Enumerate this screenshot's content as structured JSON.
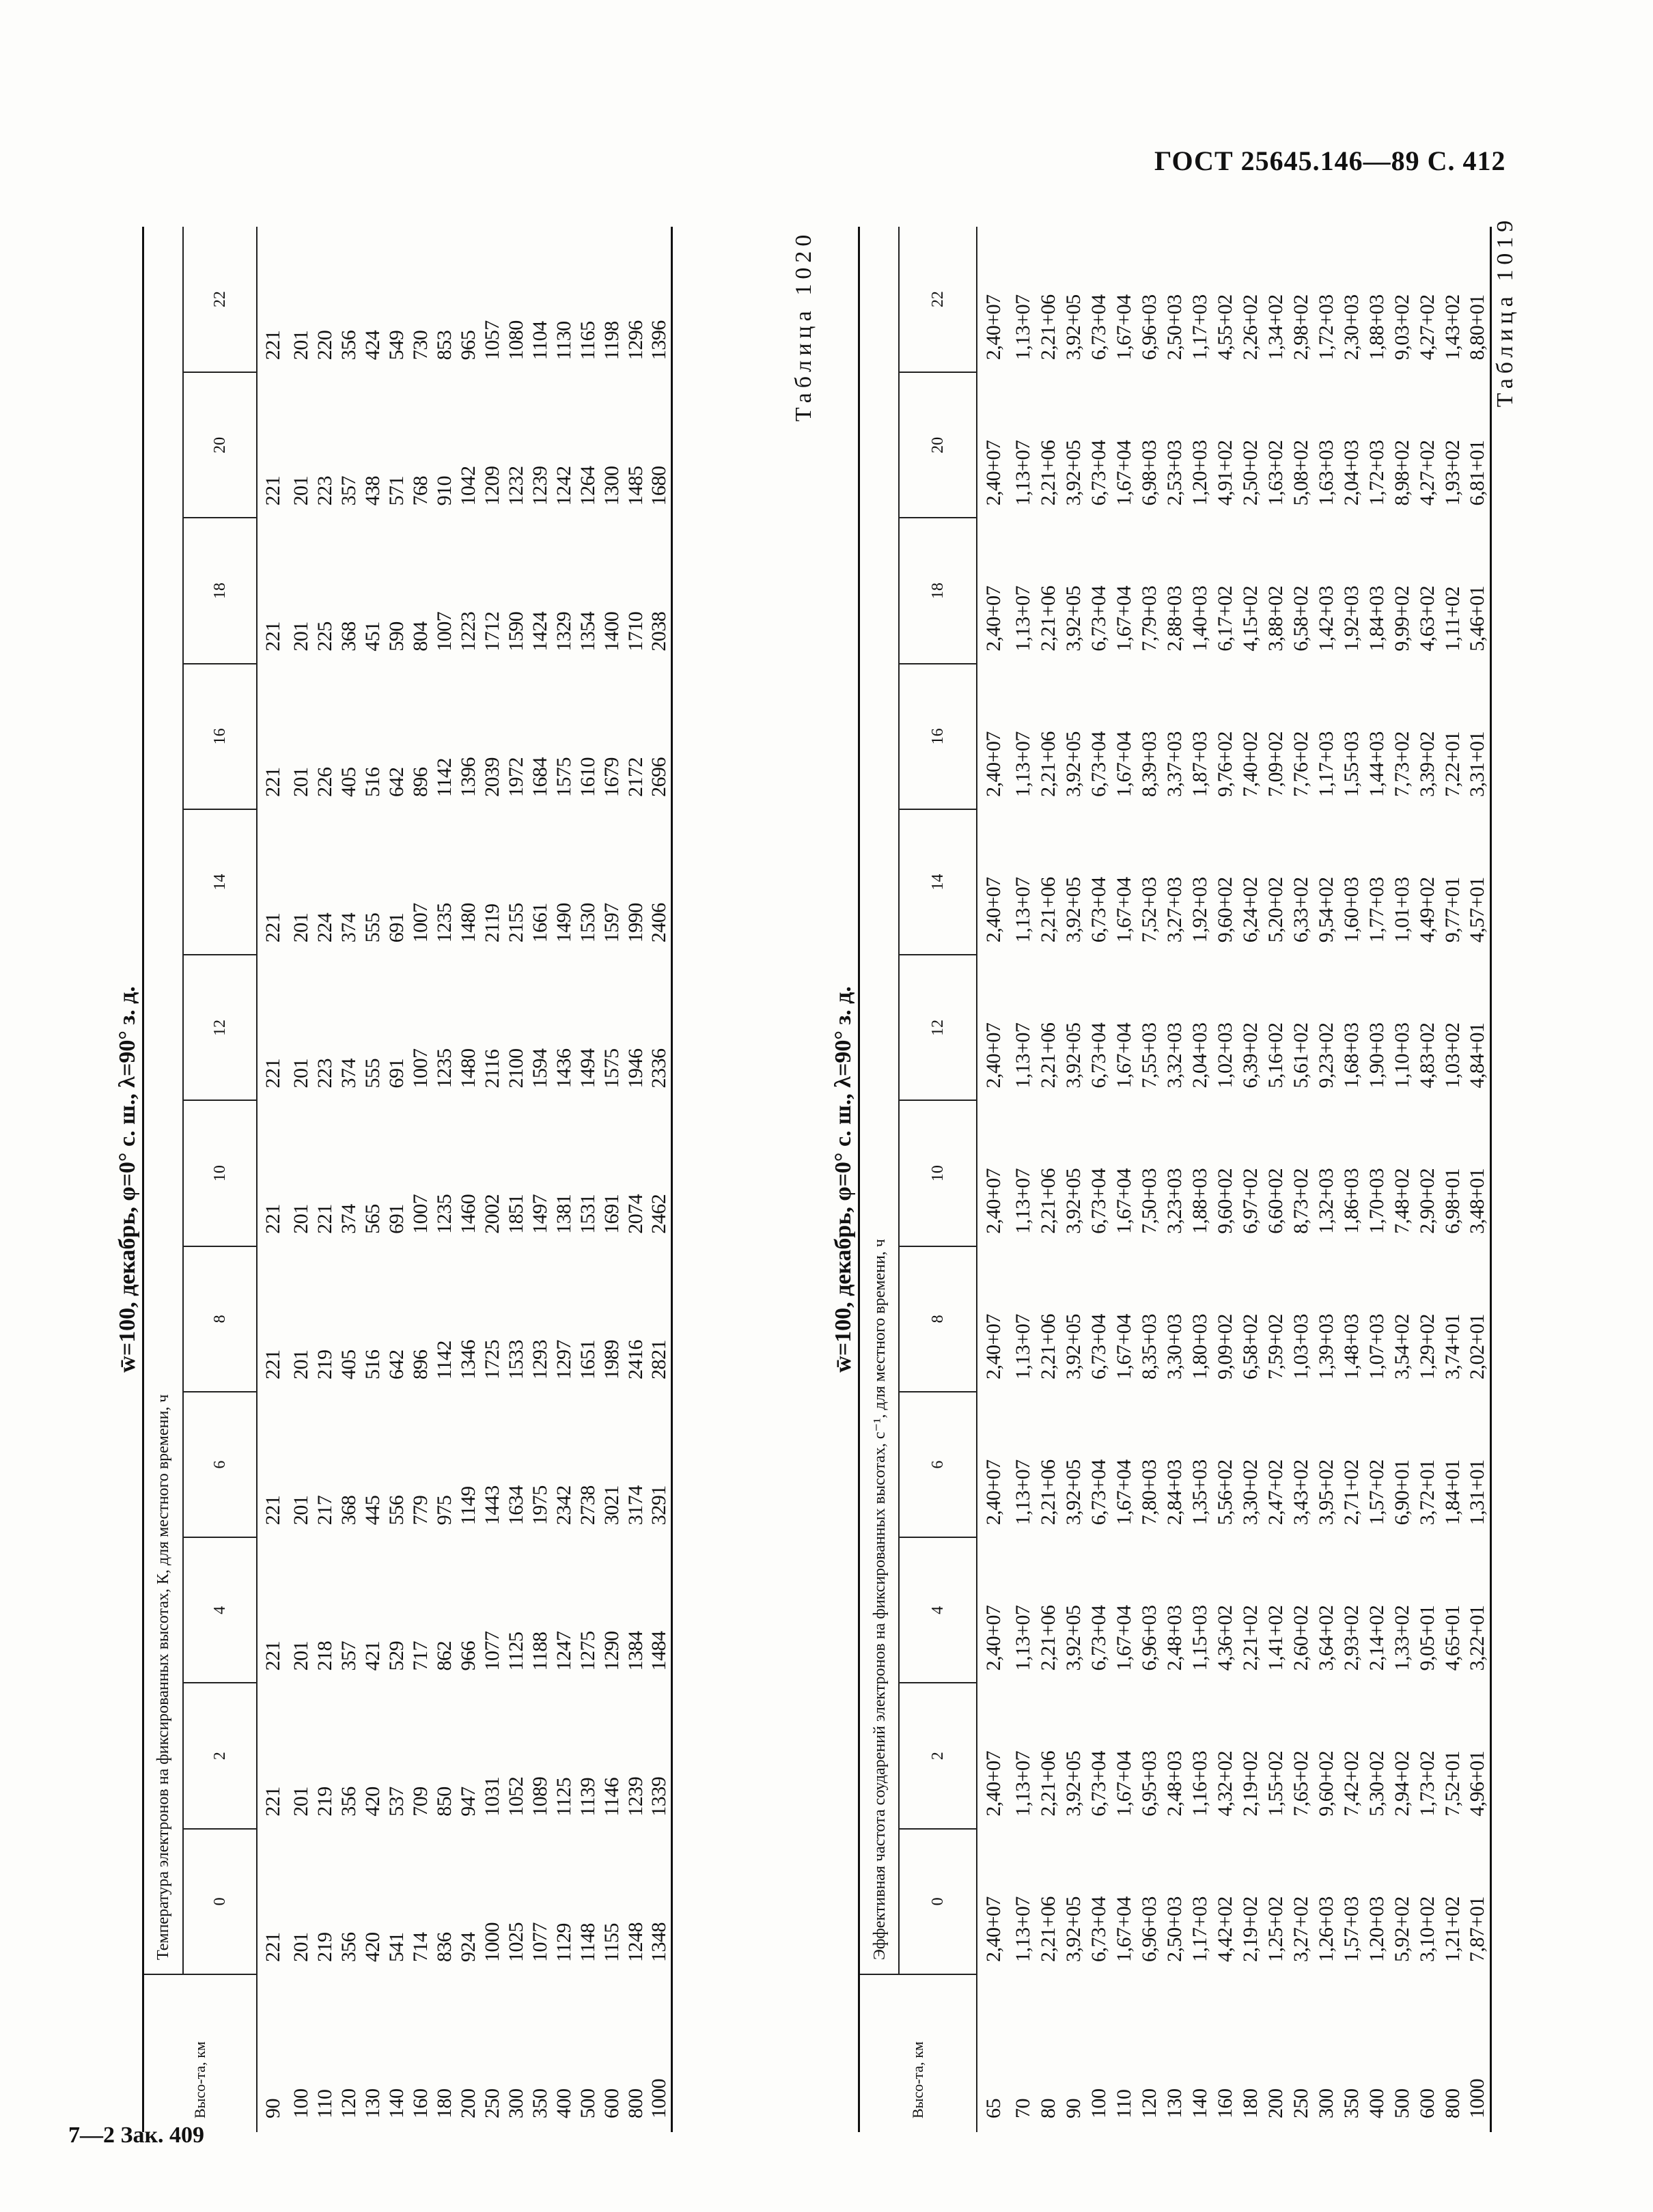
{
  "header": {
    "standard": "ГОСТ 25645.146—89 С. 412"
  },
  "tables": [
    {
      "label": "Таблица 1019",
      "title": "w̄=100, декабрь, φ=0° с. ш., λ=90° з. д.",
      "caption": "Температура электронов на фиксированных высотах, К, для местного времени, ч",
      "height_header": "Высо-та, км",
      "hours": [
        0,
        2,
        4,
        6,
        8,
        10,
        12,
        14,
        16,
        18,
        20,
        22
      ],
      "rows": [
        [
          90,
          221,
          221,
          221,
          221,
          221,
          221,
          221,
          221,
          221,
          221,
          221,
          221
        ],
        [
          100,
          201,
          201,
          201,
          201,
          201,
          201,
          201,
          201,
          201,
          201,
          201,
          201
        ],
        [
          110,
          219,
          219,
          218,
          217,
          219,
          221,
          223,
          224,
          226,
          225,
          223,
          220
        ],
        [
          120,
          356,
          356,
          357,
          368,
          405,
          374,
          374,
          374,
          405,
          368,
          357,
          356
        ],
        [
          130,
          420,
          420,
          421,
          445,
          516,
          565,
          555,
          555,
          516,
          451,
          438,
          424
        ],
        [
          140,
          541,
          537,
          529,
          556,
          642,
          691,
          691,
          691,
          642,
          590,
          571,
          549
        ],
        [
          160,
          714,
          709,
          717,
          779,
          896,
          1007,
          1007,
          1007,
          896,
          804,
          768,
          730
        ],
        [
          180,
          836,
          850,
          862,
          975,
          1142,
          1235,
          1235,
          1235,
          1142,
          1007,
          910,
          853
        ],
        [
          200,
          924,
          947,
          966,
          1149,
          1346,
          1460,
          1480,
          1480,
          1396,
          1223,
          1042,
          965
        ],
        [
          250,
          1000,
          1031,
          1077,
          1443,
          1725,
          2002,
          2116,
          2119,
          2039,
          1712,
          1209,
          1057
        ],
        [
          300,
          1025,
          1052,
          1125,
          1634,
          1533,
          1851,
          2100,
          2155,
          1972,
          1590,
          1232,
          1080
        ],
        [
          350,
          1077,
          1089,
          1188,
          1975,
          1293,
          1497,
          1594,
          1661,
          1684,
          1424,
          1239,
          1104
        ],
        [
          400,
          1129,
          1125,
          1247,
          2342,
          1297,
          1381,
          1436,
          1490,
          1575,
          1329,
          1242,
          1130
        ],
        [
          500,
          1148,
          1139,
          1275,
          2738,
          1651,
          1531,
          1494,
          1530,
          1610,
          1354,
          1264,
          1165
        ],
        [
          600,
          1155,
          1146,
          1290,
          3021,
          1989,
          1691,
          1575,
          1597,
          1679,
          1400,
          1300,
          1198
        ],
        [
          800,
          1248,
          1239,
          1384,
          3174,
          2416,
          2074,
          1946,
          1990,
          2172,
          1710,
          1485,
          1296
        ],
        [
          1000,
          1348,
          1339,
          1484,
          3291,
          2821,
          2462,
          2336,
          2406,
          2696,
          2038,
          1680,
          1396
        ]
      ]
    },
    {
      "label": "Таблица 1020",
      "title": "w̄=100, декабрь, φ=0° с. ш., λ=90° з. д.",
      "caption": "Эффективная частота соударений электронов на фиксированных высотах, с⁻¹, для местного времени, ч",
      "height_header": "Высо-та, км",
      "hours": [
        0,
        2,
        4,
        6,
        8,
        10,
        12,
        14,
        16,
        18,
        20,
        22
      ],
      "rows": [
        [
          65,
          "2,40+07",
          "2,40+07",
          "2,40+07",
          "2,40+07",
          "2,40+07",
          "2,40+07",
          "2,40+07",
          "2,40+07",
          "2,40+07",
          "2,40+07",
          "2,40+07",
          "2,40+07"
        ],
        [
          70,
          "1,13+07",
          "1,13+07",
          "1,13+07",
          "1,13+07",
          "1,13+07",
          "1,13+07",
          "1,13+07",
          "1,13+07",
          "1,13+07",
          "1,13+07",
          "1,13+07",
          "1,13+07"
        ],
        [
          80,
          "2,21+06",
          "2,21+06",
          "2,21+06",
          "2,21+06",
          "2,21+06",
          "2,21+06",
          "2,21+06",
          "2,21+06",
          "2,21+06",
          "2,21+06",
          "2,21+06",
          "2,21+06"
        ],
        [
          90,
          "3,92+05",
          "3,92+05",
          "3,92+05",
          "3,92+05",
          "3,92+05",
          "3,92+05",
          "3,92+05",
          "3,92+05",
          "3,92+05",
          "3,92+05",
          "3,92+05",
          "3,92+05"
        ],
        [
          100,
          "6,73+04",
          "6,73+04",
          "6,73+04",
          "6,73+04",
          "6,73+04",
          "6,73+04",
          "6,73+04",
          "6,73+04",
          "6,73+04",
          "6,73+04",
          "6,73+04",
          "6,73+04"
        ],
        [
          110,
          "1,67+04",
          "1,67+04",
          "1,67+04",
          "1,67+04",
          "1,67+04",
          "1,67+04",
          "1,67+04",
          "1,67+04",
          "1,67+04",
          "1,67+04",
          "1,67+04",
          "1,67+04"
        ],
        [
          120,
          "6,96+03",
          "6,95+03",
          "6,96+03",
          "7,80+03",
          "8,35+03",
          "7,50+03",
          "7,55+03",
          "7,52+03",
          "8,39+03",
          "7,79+03",
          "6,98+03",
          "6,96+03"
        ],
        [
          130,
          "2,50+03",
          "2,48+03",
          "2,48+03",
          "2,84+03",
          "3,30+03",
          "3,23+03",
          "3,32+03",
          "3,27+03",
          "3,37+03",
          "2,88+03",
          "2,53+03",
          "2,50+03"
        ],
        [
          140,
          "1,17+03",
          "1,16+03",
          "1,15+03",
          "1,35+03",
          "1,80+03",
          "1,88+03",
          "2,04+03",
          "1,92+03",
          "1,87+03",
          "1,40+03",
          "1,20+03",
          "1,17+03"
        ],
        [
          160,
          "4,42+02",
          "4,32+02",
          "4,36+02",
          "5,56+02",
          "9,09+02",
          "9,60+02",
          "1,02+03",
          "9,60+02",
          "9,76+02",
          "6,17+02",
          "4,91+02",
          "4,55+02"
        ],
        [
          180,
          "2,19+02",
          "2,19+02",
          "2,21+02",
          "3,30+02",
          "6,58+02",
          "6,97+02",
          "6,39+02",
          "6,24+02",
          "7,40+02",
          "4,15+02",
          "2,50+02",
          "2,26+02"
        ],
        [
          200,
          "1,25+02",
          "1,55+02",
          "1,41+02",
          "2,47+02",
          "7,59+02",
          "6,60+02",
          "5,16+02",
          "5,20+02",
          "7,09+02",
          "3,88+02",
          "1,63+02",
          "1,34+02"
        ],
        [
          250,
          "3,27+02",
          "7,65+02",
          "2,60+02",
          "3,43+02",
          "1,03+03",
          "8,73+02",
          "5,61+02",
          "6,33+02",
          "7,76+02",
          "6,58+02",
          "5,08+02",
          "2,98+02"
        ],
        [
          300,
          "1,26+03",
          "9,60+02",
          "3,64+02",
          "3,95+02",
          "1,39+03",
          "1,32+03",
          "9,23+02",
          "9,54+02",
          "1,17+03",
          "1,42+03",
          "1,63+03",
          "1,72+03"
        ],
        [
          350,
          "1,57+03",
          "7,42+02",
          "2,93+02",
          "2,71+02",
          "1,48+03",
          "1,86+03",
          "1,68+03",
          "1,60+03",
          "1,55+03",
          "1,92+03",
          "2,04+03",
          "2,30+03"
        ],
        [
          400,
          "1,20+03",
          "5,30+02",
          "2,14+02",
          "1,57+02",
          "1,07+03",
          "1,70+03",
          "1,90+03",
          "1,77+03",
          "1,44+03",
          "1,84+03",
          "1,72+03",
          "1,88+03"
        ],
        [
          500,
          "5,92+02",
          "2,94+02",
          "1,33+02",
          "6,90+01",
          "3,54+02",
          "7,48+02",
          "1,10+03",
          "1,01+03",
          "7,73+02",
          "9,99+02",
          "8,98+02",
          "9,03+02"
        ],
        [
          600,
          "3,10+02",
          "1,73+02",
          "9,05+01",
          "3,72+01",
          "1,29+02",
          "2,90+02",
          "4,83+02",
          "4,49+02",
          "3,39+02",
          "4,63+02",
          "4,27+02",
          "4,27+02"
        ],
        [
          800,
          "1,21+02",
          "7,52+01",
          "4,65+01",
          "1,84+01",
          "3,74+01",
          "6,98+01",
          "1,03+02",
          "9,77+01",
          "7,22+01",
          "1,11+02",
          "1,93+02",
          "1,43+02"
        ],
        [
          1000,
          "7,87+01",
          "4,96+01",
          "3,22+01",
          "1,31+01",
          "2,02+01",
          "3,48+01",
          "4,84+01",
          "4,57+01",
          "3,31+01",
          "5,46+01",
          "6,81+01",
          "8,80+01"
        ]
      ]
    }
  ],
  "footer": "7—2 Зак. 409"
}
